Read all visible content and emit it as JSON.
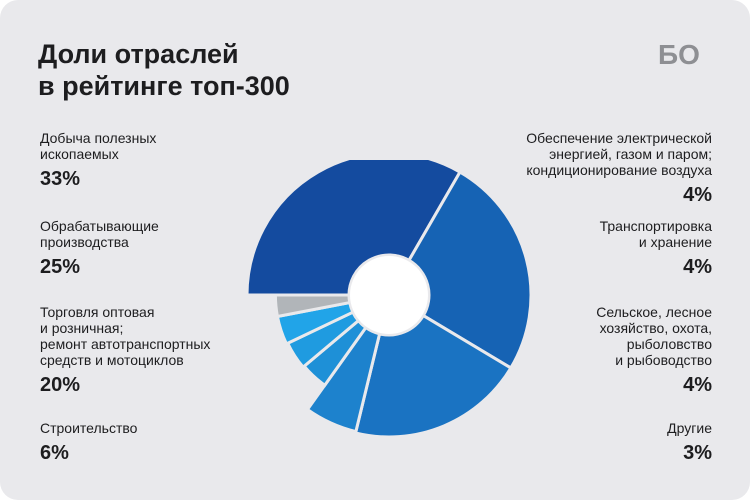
{
  "header": {
    "title_line1": "Доли отраслей",
    "title_line2": "в рейтинге топ-300",
    "logo_text": "БО"
  },
  "chart_data": {
    "type": "pie",
    "title": "Доли отраслей в рейтинге топ-300",
    "unit": "%",
    "slices": [
      {
        "label_lines": [
          "Добыча полезных",
          "ископаемых"
        ],
        "value": 33,
        "value_label": "33%",
        "color": "#144b9f"
      },
      {
        "label_lines": [
          "Обрабатывающие",
          "производства"
        ],
        "value": 25,
        "value_label": "25%",
        "color": "#1663b4"
      },
      {
        "label_lines": [
          "Торговля оптовая",
          "и розничная;",
          "ремонт автотранспортных",
          "средств и мотоциклов"
        ],
        "value": 20,
        "value_label": "20%",
        "color": "#1a73c2"
      },
      {
        "label_lines": [
          "Строительство"
        ],
        "value": 6,
        "value_label": "6%",
        "color": "#1d82cd"
      },
      {
        "label_lines": [
          "Обеспечение электрической",
          "энергией, газом и паром;",
          "кондиционирование воздуха"
        ],
        "value": 4,
        "value_label": "4%",
        "color": "#1e90d7"
      },
      {
        "label_lines": [
          "Транспортировка",
          "и хранение"
        ],
        "value": 4,
        "value_label": "4%",
        "color": "#1f9be0"
      },
      {
        "label_lines": [
          "Сельское, лесное",
          "хозяйство, охота,",
          "рыболовство",
          "и рыбоводство"
        ],
        "value": 4,
        "value_label": "4%",
        "color": "#21a4e8"
      },
      {
        "label_lines": [
          "Другие"
        ],
        "value": 3,
        "value_label": "3%",
        "color": "#b1b5b9"
      }
    ]
  }
}
